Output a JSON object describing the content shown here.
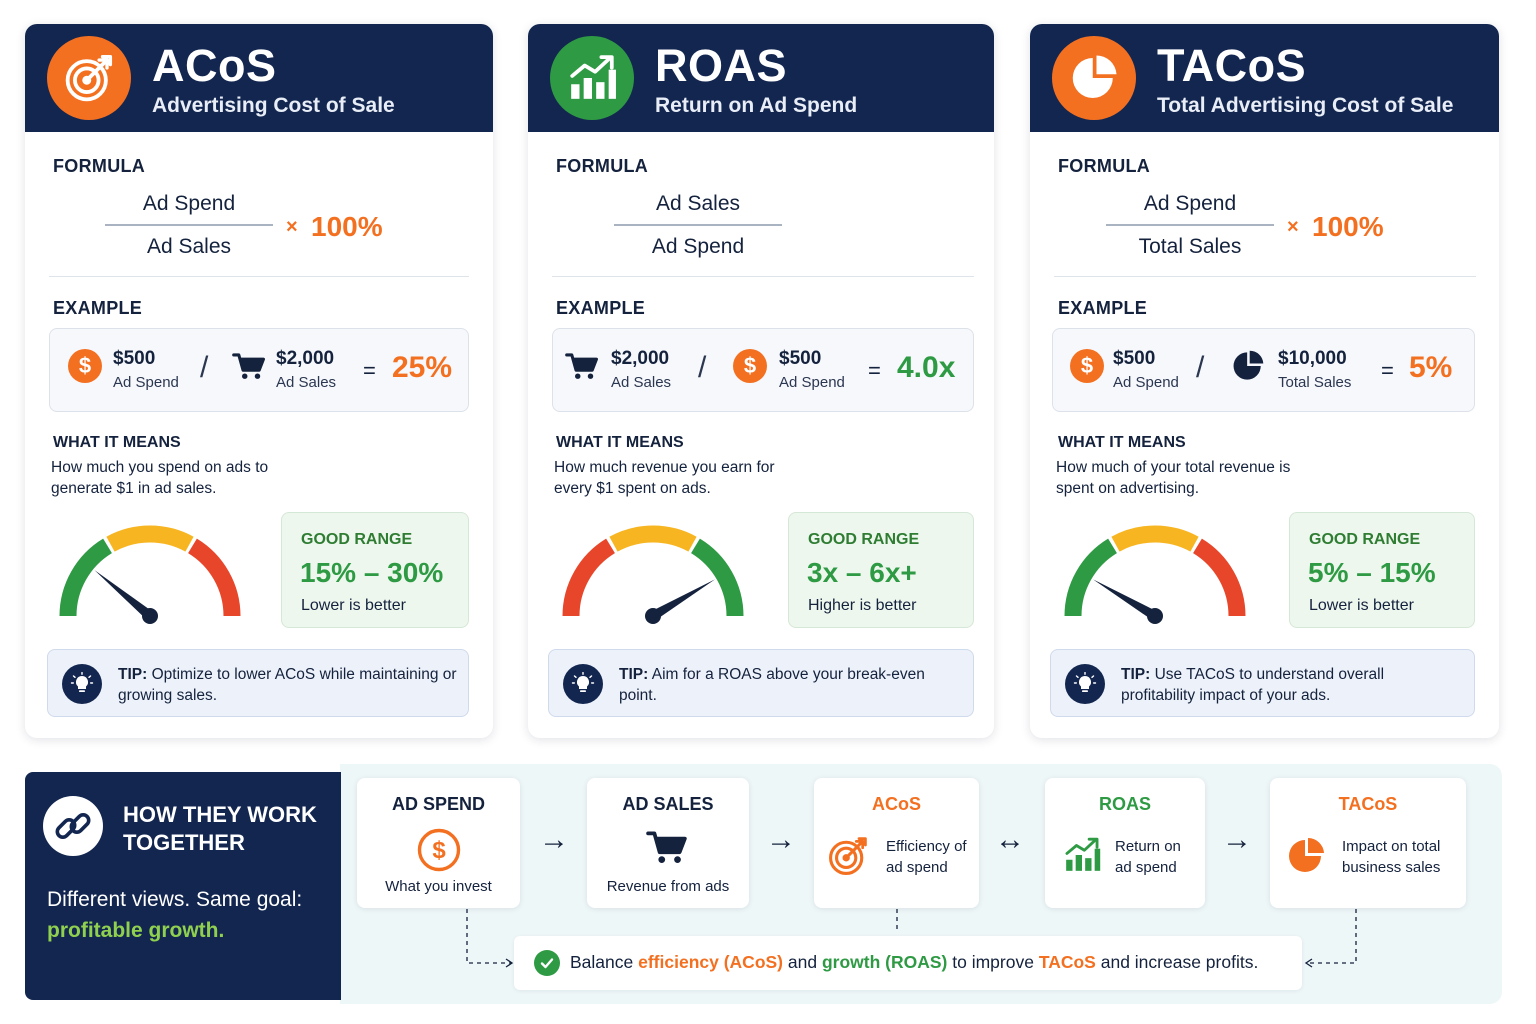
{
  "colors": {
    "navy": "#132650",
    "orange": "#f37021",
    "green": "#2e9a43",
    "yellow": "#f7b521",
    "red": "#e8462a"
  },
  "cards": [
    {
      "title": "ACoS",
      "subtitle": "Advertising Cost of Sale",
      "icon": "target-icon",
      "formula_label": "FORMULA",
      "formula": {
        "numerator": "Ad Spend",
        "denominator": "Ad Sales",
        "multiplier": "×",
        "percent": "100%"
      },
      "example_label": "EXAMPLE",
      "example": {
        "left_value": "$500",
        "left_label": "Ad Spend",
        "left_icon": "dollar-coin-icon",
        "operator": "/",
        "right_value": "$2,000",
        "right_label": "Ad Sales",
        "right_icon": "shopping-cart-icon",
        "equals": "=",
        "result": "25%"
      },
      "means_label": "WHAT IT MEANS",
      "means_text": "How much you spend on ads to generate $1 in ad sales.",
      "gauge_level": 0.22,
      "range_label": "GOOD RANGE",
      "range_value": "15% – 30%",
      "range_note": "Lower is better",
      "tip_prefix": "TIP:",
      "tip_text": "Optimize to lower ACoS while maintaining or growing sales."
    },
    {
      "title": "ROAS",
      "subtitle": "Return on Ad Spend",
      "icon": "bar-chart-up-icon",
      "formula_label": "FORMULA",
      "formula": {
        "numerator": "Ad Sales",
        "denominator": "Ad Spend"
      },
      "example_label": "EXAMPLE",
      "example": {
        "left_value": "$2,000",
        "left_label": "Ad Sales",
        "left_icon": "shopping-cart-icon",
        "operator": "/",
        "right_value": "$500",
        "right_label": "Ad Spend",
        "right_icon": "dollar-coin-icon",
        "equals": "=",
        "result": "4.0x"
      },
      "means_label": "WHAT IT MEANS",
      "means_text": "How much revenue you earn for every $1 spent on ads.",
      "gauge_level": 0.83,
      "range_label": "GOOD RANGE",
      "range_value": "3x – 6x+",
      "range_note": "Higher is better",
      "tip_prefix": "TIP:",
      "tip_text": "Aim for a ROAS above your break-even point."
    },
    {
      "title": "TACoS",
      "subtitle": "Total Advertising Cost of Sale",
      "icon": "pie-chart-icon",
      "formula_label": "FORMULA",
      "formula": {
        "numerator": "Ad Spend",
        "denominator": "Total Sales",
        "multiplier": "×",
        "percent": "100%"
      },
      "example_label": "EXAMPLE",
      "example": {
        "left_value": "$500",
        "left_label": "Ad Spend",
        "left_icon": "dollar-coin-icon",
        "operator": "/",
        "right_value": "$10,000",
        "right_label": "Total Sales",
        "right_icon": "pie-chart-icon",
        "equals": "=",
        "result": "5%"
      },
      "means_label": "WHAT IT MEANS",
      "means_text": "How much of your total revenue is spent on advertising.",
      "gauge_level": 0.17,
      "range_label": "GOOD RANGE",
      "range_value": "5% – 15%",
      "range_note": "Lower is better",
      "tip_prefix": "TIP:",
      "tip_text": "Use TACoS to understand overall profitability impact of your ads."
    }
  ],
  "how": {
    "title": "HOW THEY WORK TOGETHER",
    "desc_prefix": "Different views. Same goal:",
    "desc_accent": "profitable growth."
  },
  "flow": [
    {
      "title": "AD SPEND",
      "caption": "What you invest",
      "icon": "dollar-circle-icon"
    },
    {
      "title": "AD SALES",
      "caption": "Revenue from ads",
      "icon": "shopping-cart-icon"
    },
    {
      "title": "ACoS",
      "caption": "Efficiency of ad spend",
      "icon": "target-icon"
    },
    {
      "title": "ROAS",
      "caption": "Return on ad spend",
      "icon": "bar-chart-up-icon"
    },
    {
      "title": "TACoS",
      "caption": "Impact on total business sales",
      "icon": "pie-chart-icon"
    }
  ],
  "arrows": [
    "→",
    "→",
    "↔",
    "→"
  ],
  "balance": {
    "p1": "Balance",
    "h1": "efficiency (ACoS)",
    "p2": "and",
    "h2": "growth (ROAS)",
    "p3": "to improve",
    "h3": "TACoS",
    "p4": "and increase profits."
  }
}
